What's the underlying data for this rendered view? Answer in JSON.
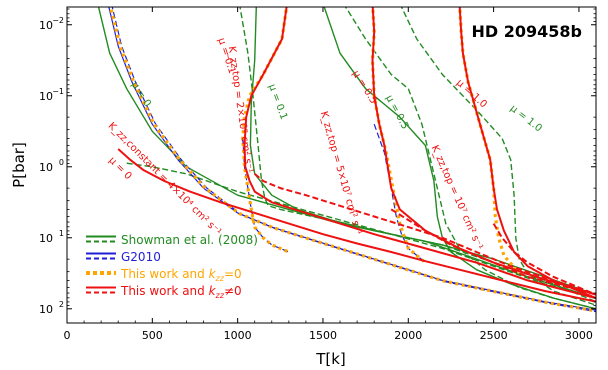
{
  "chart_data": {
    "type": "line",
    "title": "HD 209458b",
    "xlabel": "T[k]",
    "ylabel": "P[bar]",
    "xlim": [
      0,
      3100
    ],
    "ylim_log10": [
      -2.25,
      2.2
    ],
    "y_reversed": true,
    "y_scale": "log",
    "grid": false,
    "legend_placement": "lower-left",
    "x_ticks": [
      "0",
      "500",
      "1000",
      "1500",
      "2000",
      "2500",
      "3000"
    ],
    "y_ticks": [
      {
        "label": "10",
        "exp": "−2",
        "log": -2
      },
      {
        "label": "10",
        "exp": "−1",
        "log": -1
      },
      {
        "label": "10",
        "exp": "0",
        "log": 0
      },
      {
        "label": "10",
        "exp": "1",
        "log": 1
      },
      {
        "label": "10",
        "exp": "2",
        "log": 2
      }
    ],
    "colors": {
      "green": "#228B22",
      "blue": "#1f1fd6",
      "orange": "#FFA500",
      "red": "#EE1111"
    },
    "legend": [
      {
        "label": "Showman et al. (2008)",
        "color": "#228B22",
        "style": "solid-dashed",
        "text_color": "#228B22"
      },
      {
        "label": "G2010",
        "color": "#1f1fd6",
        "style": "solid-dashed",
        "text_color": "#1f1fd6"
      },
      {
        "label": "This work and k_zz=0",
        "label_parts": [
          "This work and ",
          "k",
          "zz",
          "=0"
        ],
        "color": "#FFA500",
        "style": "dotted",
        "text_color": "#FFA500"
      },
      {
        "label": "This work and k_zz≠0",
        "label_parts": [
          "This work and ",
          "k",
          "zz",
          "≠0"
        ],
        "color": "#EE1111",
        "style": "solid-dashed",
        "text_color": "#EE1111"
      }
    ],
    "annotations": [
      {
        "label": "μ = 0",
        "color": "#228B22",
        "x": 420,
        "y_log": -1.0,
        "angle": 58,
        "size": 10
      },
      {
        "label": "μ = 0.1",
        "color": "#228B22",
        "x": 1220,
        "y_log": -0.9,
        "angle": 70,
        "size": 10
      },
      {
        "label": "μ = 0.5",
        "color": "#228B22",
        "x": 1920,
        "y_log": -0.75,
        "angle": 62,
        "size": 10
      },
      {
        "label": "μ = 1.0",
        "color": "#228B22",
        "x": 2680,
        "y_log": -0.65,
        "angle": 38,
        "size": 10
      },
      {
        "label": "μ = 0.1",
        "color": "#EE1111",
        "x": 920,
        "y_log": -1.55,
        "angle": 72,
        "size": 10
      },
      {
        "label": "μ = 0.5",
        "color": "#EE1111",
        "x": 1730,
        "y_log": -1.1,
        "angle": 58,
        "size": 10
      },
      {
        "label": "μ = 1.0",
        "color": "#EE1111",
        "x": 2360,
        "y_log": -1.0,
        "angle": 42,
        "size": 10
      },
      {
        "label": "μ = 0",
        "color": "#EE1111",
        "x": 300,
        "y_log": 0.05,
        "angle": 45,
        "size": 10
      },
      {
        "label": "K_zz,constant = 4×10⁴ cm² s⁻¹",
        "color": "#EE1111",
        "x": 560,
        "y_log": 0.2,
        "angle": 45,
        "size": 10
      },
      {
        "label": "K_zz,top = 2×10⁸ cm² s⁻¹",
        "color": "#EE1111",
        "x": 1000,
        "y_log": -0.8,
        "angle": 82,
        "size": 10
      },
      {
        "label": "K_zz,top = 5×10⁷ cm² s⁻¹",
        "color": "#EE1111",
        "x": 1590,
        "y_log": 0.1,
        "angle": 74,
        "size": 10
      },
      {
        "label": "K_zz,top = 10⁷ cm² s⁻¹",
        "color": "#EE1111",
        "x": 2270,
        "y_log": 0.45,
        "angle": 66,
        "size": 10
      }
    ],
    "series": [
      {
        "group": "mu0",
        "color": "#228B22",
        "style": "solid",
        "width": 1.4,
        "x": [
          180,
          250,
          350,
          500,
          700,
          1000,
          1300,
          1600,
          1900,
          2200,
          2500,
          2800,
          3100
        ],
        "y_log": [
          -2.3,
          -1.6,
          -1.1,
          -0.5,
          0.0,
          0.4,
          0.6,
          0.8,
          0.95,
          1.1,
          1.3,
          1.55,
          1.8
        ]
      },
      {
        "group": "mu0",
        "color": "#228B22",
        "style": "dashed",
        "width": 1.4,
        "x": [
          350,
          500,
          700,
          1000,
          1300,
          1600,
          1900,
          2200,
          2500,
          2800,
          3100
        ],
        "y_log": [
          -0.05,
          0.0,
          0.1,
          0.35,
          0.55,
          0.75,
          0.95,
          1.15,
          1.4,
          1.65,
          1.85
        ]
      },
      {
        "group": "mu0.1",
        "color": "#228B22",
        "style": "solid",
        "width": 1.4,
        "x": [
          1110,
          1100,
          1080,
          1075,
          1100,
          1200,
          1350,
          1550,
          1800,
          2100,
          2400,
          2700,
          3100
        ],
        "y_log": [
          -2.3,
          -1.5,
          -0.9,
          -0.3,
          0.1,
          0.4,
          0.6,
          0.75,
          0.9,
          1.05,
          1.3,
          1.55,
          1.85
        ]
      },
      {
        "group": "mu0.1",
        "color": "#228B22",
        "style": "dashed",
        "width": 1.4,
        "x": [
          1010,
          1060,
          1090,
          1120,
          1140,
          1160,
          1180,
          1250,
          1400,
          1600,
          1900,
          2200,
          2500,
          2800,
          3100
        ],
        "y_log": [
          -2.3,
          -1.6,
          -1.0,
          -0.3,
          0.2,
          0.45,
          0.55,
          0.6,
          0.68,
          0.78,
          0.95,
          1.1,
          1.35,
          1.6,
          1.9
        ]
      },
      {
        "group": "mu0.5",
        "color": "#228B22",
        "style": "solid",
        "width": 1.4,
        "x": [
          1500,
          1600,
          1750,
          1950,
          2100,
          2150,
          2170,
          2200,
          2250,
          2400,
          2600,
          2850,
          3100
        ],
        "y_log": [
          -2.3,
          -1.6,
          -1.1,
          -0.7,
          -0.3,
          0.2,
          0.7,
          1.0,
          1.2,
          1.45,
          1.65,
          1.85,
          2.0
        ]
      },
      {
        "group": "mu0.5",
        "color": "#228B22",
        "style": "dashed",
        "width": 1.4,
        "x": [
          1620,
          1750,
          1900,
          2000,
          2080,
          2150,
          2220,
          2300,
          2450,
          2650,
          2850,
          3100
        ],
        "y_log": [
          -2.3,
          -1.8,
          -1.3,
          -1.1,
          -0.6,
          0.1,
          0.8,
          1.15,
          1.45,
          1.7,
          1.85,
          2.0
        ]
      },
      {
        "group": "mu1.0",
        "color": "#228B22",
        "style": "dashed",
        "width": 1.4,
        "x": [
          1950,
          2050,
          2200,
          2400,
          2550,
          2600,
          2620,
          2630,
          2650,
          2700,
          2850,
          3100
        ],
        "y_log": [
          -2.3,
          -1.8,
          -1.3,
          -0.8,
          -0.4,
          -0.1,
          0.4,
          1.0,
          1.3,
          1.5,
          1.75,
          1.95
        ]
      },
      {
        "group": "G2010",
        "color": "#1f1fd6",
        "style": "solid",
        "width": 1.2,
        "x": [
          240,
          300,
          380,
          500,
          650,
          800,
          1000,
          1200,
          1400,
          1600,
          1800,
          2000,
          2200,
          2500,
          2800,
          3100
        ],
        "y_log": [
          -2.3,
          -1.7,
          -1.2,
          -0.6,
          -0.1,
          0.3,
          0.65,
          0.85,
          1.0,
          1.15,
          1.3,
          1.45,
          1.6,
          1.75,
          1.9,
          2.02
        ]
      },
      {
        "group": "G2010",
        "color": "#1f1fd6",
        "style": "dashed",
        "width": 1.2,
        "x": [
          260,
          320,
          400,
          520,
          670,
          820,
          1020,
          1220,
          1420,
          1620,
          1820,
          2020,
          2220,
          2520,
          2820,
          3100
        ],
        "y_log": [
          -2.3,
          -1.7,
          -1.2,
          -0.6,
          -0.1,
          0.3,
          0.67,
          0.87,
          1.02,
          1.17,
          1.32,
          1.47,
          1.62,
          1.77,
          1.92,
          2.04
        ]
      },
      {
        "group": "G2010",
        "color": "#1f1fd6",
        "style": "dashed",
        "width": 1.2,
        "x": [
          1030,
          1040,
          1060,
          1080,
          1100,
          1150,
          1200,
          1300
        ],
        "y_log": [
          -0.4,
          0.0,
          0.3,
          0.6,
          0.85,
          1.0,
          1.1,
          1.2
        ]
      },
      {
        "group": "G2010",
        "color": "#1f1fd6",
        "style": "dashed",
        "width": 1.2,
        "x": [
          1800,
          1860,
          1900,
          1930,
          1960,
          2000,
          2100
        ],
        "y_log": [
          -0.6,
          -0.2,
          0.3,
          0.7,
          0.95,
          1.15,
          1.35
        ]
      },
      {
        "group": "kzz0",
        "color": "#FFA500",
        "style": "dotted",
        "width": 3.2,
        "x": [
          250,
          310,
          390,
          510,
          660,
          810,
          1010,
          1210,
          1410,
          1610,
          1810,
          2010,
          2210,
          2510,
          2810,
          3100
        ],
        "y_log": [
          -2.3,
          -1.7,
          -1.2,
          -0.6,
          -0.1,
          0.3,
          0.66,
          0.86,
          1.01,
          1.16,
          1.31,
          1.46,
          1.61,
          1.76,
          1.91,
          2.03
        ]
      },
      {
        "group": "kzz0",
        "color": "#FFA500",
        "style": "dotted",
        "width": 3.2,
        "x": [
          1290,
          1260,
          1150,
          1070,
          1040,
          1030,
          1040,
          1060,
          1080,
          1100,
          1150,
          1200,
          1300
        ],
        "y_log": [
          -2.3,
          -1.8,
          -1.3,
          -1.0,
          -0.7,
          -0.4,
          0.0,
          0.3,
          0.6,
          0.85,
          1.0,
          1.1,
          1.2
        ]
      },
      {
        "group": "kzz0",
        "color": "#FFA500",
        "style": "dotted",
        "width": 3.2,
        "x": [
          1790,
          1800,
          1790,
          1800,
          1830,
          1870,
          1910,
          1950,
          2000,
          2100
        ],
        "y_log": [
          -2.3,
          -1.9,
          -1.5,
          -1.0,
          -0.6,
          -0.2,
          0.3,
          0.8,
          1.15,
          1.35
        ]
      },
      {
        "group": "kzz0",
        "color": "#FFA500",
        "style": "dotted",
        "width": 3.2,
        "x": [
          2300,
          2310,
          2320,
          2350,
          2420,
          2480,
          2500,
          2510,
          2530,
          2560,
          2650
        ],
        "y_log": [
          -2.3,
          -1.9,
          -1.6,
          -1.2,
          -0.6,
          -0.1,
          0.3,
          0.7,
          1.0,
          1.25,
          1.5
        ]
      },
      {
        "group": "kzz",
        "color": "#EE1111",
        "style": "solid",
        "width": 2.0,
        "x": [
          300,
          370,
          450,
          570,
          720,
          900,
          1100,
          1300,
          1500,
          1700,
          1900,
          2100,
          2300,
          2550,
          2800,
          3100
        ],
        "y_log": [
          -0.25,
          -0.1,
          0.05,
          0.2,
          0.35,
          0.5,
          0.65,
          0.8,
          0.95,
          1.08,
          1.2,
          1.33,
          1.45,
          1.6,
          1.75,
          1.9
        ]
      },
      {
        "group": "kzz",
        "color": "#EE1111",
        "style": "solid",
        "width": 2.0,
        "x": [
          1290,
          1260,
          1150,
          1080,
          1050,
          1040,
          1045,
          1070,
          1100,
          1200,
          1400,
          1600,
          1800,
          2100,
          2400,
          2700,
          3100
        ],
        "y_log": [
          -2.3,
          -1.8,
          -1.3,
          -1.0,
          -0.7,
          -0.3,
          0.0,
          0.2,
          0.35,
          0.5,
          0.65,
          0.8,
          0.95,
          1.15,
          1.35,
          1.6,
          1.85
        ]
      },
      {
        "group": "kzz",
        "color": "#EE1111",
        "style": "dashed",
        "width": 2.0,
        "x": [
          1100,
          1150,
          1250,
          1400,
          1600,
          1800,
          2000,
          2200,
          2400,
          2600,
          2850,
          3100
        ],
        "y_log": [
          0.1,
          0.2,
          0.3,
          0.4,
          0.55,
          0.7,
          0.85,
          1.0,
          1.2,
          1.4,
          1.6,
          1.8
        ]
      },
      {
        "group": "kzz",
        "color": "#EE1111",
        "style": "solid",
        "width": 2.0,
        "x": [
          1790,
          1800,
          1790,
          1800,
          1830,
          1860,
          1880,
          1900,
          1950,
          2100,
          2300,
          2500,
          2750,
          3100
        ],
        "y_log": [
          -2.3,
          -1.9,
          -1.5,
          -1.0,
          -0.6,
          -0.3,
          0.0,
          0.3,
          0.6,
          0.9,
          1.15,
          1.35,
          1.55,
          1.8
        ]
      },
      {
        "group": "kzz",
        "color": "#EE1111",
        "style": "dashed",
        "width": 2.0,
        "x": [
          1900,
          2000,
          2100,
          2250,
          2450,
          2700,
          3100
        ],
        "y_log": [
          0.6,
          0.75,
          0.9,
          1.1,
          1.3,
          1.55,
          1.8
        ]
      },
      {
        "group": "kzz",
        "color": "#EE1111",
        "style": "solid",
        "width": 2.0,
        "x": [
          2300,
          2310,
          2320,
          2350,
          2420,
          2480,
          2500,
          2520,
          2560,
          2620,
          2700,
          2850,
          3100
        ],
        "y_log": [
          -2.3,
          -1.9,
          -1.6,
          -1.2,
          -0.6,
          -0.1,
          0.3,
          0.6,
          0.9,
          1.2,
          1.4,
          1.6,
          1.85
        ]
      },
      {
        "group": "kzz",
        "color": "#EE1111",
        "style": "dashed",
        "width": 2.0,
        "x": [
          2500,
          2550,
          2620,
          2700,
          2850,
          3100
        ],
        "y_log": [
          0.8,
          1.0,
          1.2,
          1.35,
          1.55,
          1.8
        ]
      }
    ]
  }
}
